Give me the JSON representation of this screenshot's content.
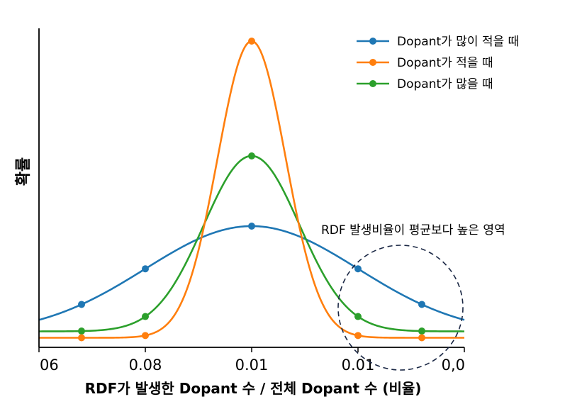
{
  "chart_data": {
    "type": "line",
    "title": "",
    "xlabel": "RDF가 발생한 Dopant 수 / 전체 Dopant 수 (비율)",
    "ylabel": "확률",
    "xlim": [
      -2.0,
      2.0
    ],
    "ylim": [
      0,
      1.0
    ],
    "x_ticks": [
      {
        "x": -2.0,
        "label": "06"
      },
      {
        "x": -1.0,
        "label": "0.08"
      },
      {
        "x": 0.0,
        "label": "0.01"
      },
      {
        "x": 1.0,
        "label": "0.01"
      },
      {
        "x": 2.0,
        "label": "0,0"
      }
    ],
    "grid": false,
    "legend_position": "top-right",
    "series": [
      {
        "name": "Dopant가 많이 적을 때",
        "color": "#1f77b4",
        "sigma": 1.0,
        "peak": 0.34,
        "base": 0.04,
        "marker_x": [
          -1.6,
          -1.0,
          0.0,
          1.0,
          1.6
        ]
      },
      {
        "name": "Dopant가 적을 때",
        "color": "#ff7f0e",
        "sigma": 0.32,
        "peak": 0.93,
        "base": 0.03,
        "marker_x": [
          -1.6,
          -1.0,
          0.0,
          1.0,
          1.6
        ]
      },
      {
        "name": "Dopant가 많을 때",
        "color": "#2ca02c",
        "sigma": 0.45,
        "peak": 0.55,
        "base": 0.05,
        "marker_x": [
          -1.6,
          -1.0,
          0.0,
          1.0,
          1.6
        ]
      }
    ],
    "annotations": [
      {
        "text": "RDF 발생비율이 평균보다 높은 영역",
        "shape": "dashed-circle",
        "color": "#1a2744",
        "center_x": 1.4
      }
    ]
  }
}
